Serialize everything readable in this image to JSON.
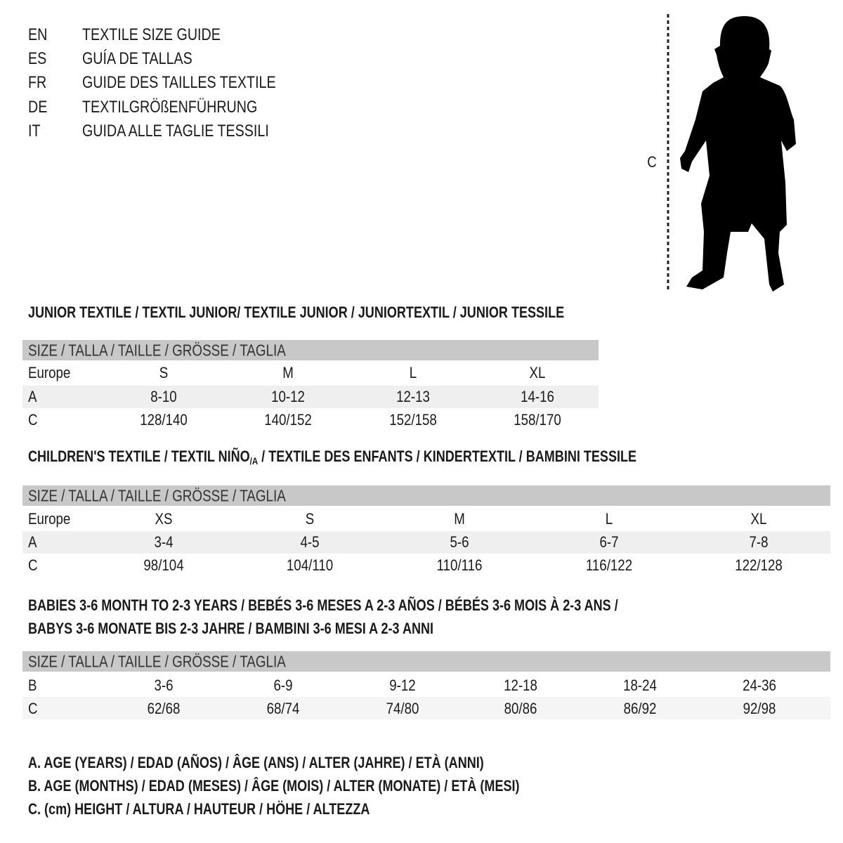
{
  "languages": [
    {
      "code": "EN",
      "title": "TEXTILE SIZE GUIDE"
    },
    {
      "code": "ES",
      "title": "GUÍA DE TALLAS"
    },
    {
      "code": "FR",
      "title": "GUIDE DES TAILLES TEXTILE"
    },
    {
      "code": "DE",
      "title": "TEXTILGRÖßENFÜHRUNG"
    },
    {
      "code": "IT",
      "title": "GUIDA ALLE TAGLIE TESSILI"
    }
  ],
  "figure": {
    "measure_label": "C",
    "icon": "child-silhouette-icon"
  },
  "size_header": "SIZE / TALLA / TAILLE / GRÖSSE / TAGLIA",
  "junior": {
    "title": "JUNIOR TEXTILE / TEXTIL JUNIOR/ TEXTILE JUNIOR / JUNIORTEXTIL / JUNIOR TESSILE",
    "rows": [
      {
        "label": "Europe",
        "values": [
          "S",
          "M",
          "L",
          "XL"
        ]
      },
      {
        "label": "A",
        "values": [
          "8-10",
          "10-12",
          "12-13",
          "14-16"
        ]
      },
      {
        "label": "C",
        "values": [
          "128/140",
          "140/152",
          "152/158",
          "158/170"
        ]
      }
    ]
  },
  "children": {
    "title_pre": "CHILDREN'S TEXTILE / TEXTIL NIÑO",
    "title_sub": "/A",
    "title_post": " / TEXTILE DES ENFANTS / KINDERTEXTIL / BAMBINI TESSILE",
    "rows": [
      {
        "label": "Europe",
        "values": [
          "XS",
          "S",
          "M",
          "L",
          "XL"
        ]
      },
      {
        "label": "A",
        "values": [
          "3-4",
          "4-5",
          "5-6",
          "6-7",
          "7-8"
        ]
      },
      {
        "label": "C",
        "values": [
          "98/104",
          "104/110",
          "110/116",
          "116/122",
          "122/128"
        ]
      }
    ]
  },
  "babies": {
    "title_line1": "BABIES 3-6 MONTH TO 2-3 YEARS / BEBÉS 3-6 MESES A 2-3 AÑOS / BÉBÉS 3-6 MOIS À 2-3 ANS /",
    "title_line2": "BABYS 3-6 MONATE BIS 2-3 JAHRE / BAMBINI 3-6 MESI A 2-3 ANNI",
    "rows": [
      {
        "label": "B",
        "values": [
          "3-6",
          "6-9",
          "9-12",
          "12-18",
          "18-24",
          "24-36"
        ]
      },
      {
        "label": "C",
        "values": [
          "62/68",
          "68/74",
          "74/80",
          "80/86",
          "86/92",
          "92/98"
        ]
      }
    ]
  },
  "legend": [
    "A. AGE (YEARS) / EDAD (AÑOS) / ÂGE (ANS) / ALTER (JAHRE) / ETÀ (ANNI)",
    "B. AGE (MONTHS) / EDAD (MESES) / ÂGE (MOIS) / ALTER (MONATE) / ETÀ (MESI)",
    "C. (cm) HEIGHT / ALTURA / HAUTEUR / HÖHE / ALTEZZA"
  ],
  "colors": {
    "band": "#c8c8c8",
    "alt_row": "#efefef",
    "text": "#1a1a1a"
  }
}
